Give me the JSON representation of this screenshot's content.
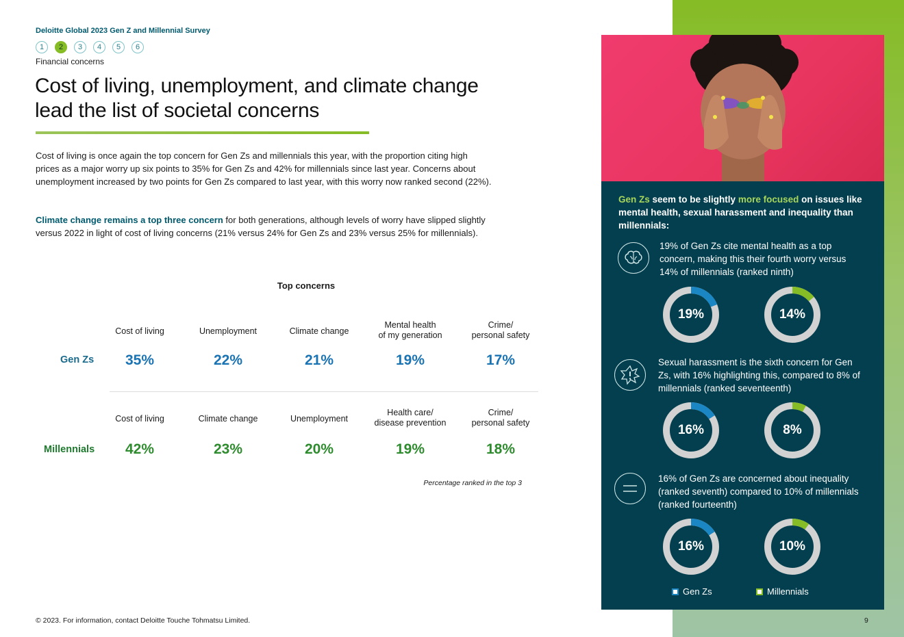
{
  "header": {
    "survey_title": "Deloitte Global 2023 Gen Z and Millennial Survey",
    "steps": [
      "1",
      "2",
      "3",
      "4",
      "5",
      "6"
    ],
    "active_step": "2",
    "section": "Financial concerns"
  },
  "headline": {
    "line1": "Cost of living, unemployment, and climate change",
    "line2": "lead the list of societal concerns"
  },
  "body": {
    "para1": "Cost of living is once again the top concern for Gen Zs and millennials this year, with the proportion citing high prices as a major worry up six points to 35% for Gen Zs and 42% for millennials since last year. Concerns about unemployment increased by two points for Gen Zs compared to last year, with this worry now ranked second (22%).",
    "para2_highlight": "Climate change remains a top three concern",
    "para2_rest": " for both generations, although levels of worry have slipped slightly versus 2022 in light of cost of living concerns (21% versus 24% for Gen Zs and 23% versus 25% for millennials)."
  },
  "table": {
    "title": "Top concerns",
    "gen_z": {
      "label": "Gen Zs",
      "cols": [
        {
          "head1": "Cost of living",
          "head2": "",
          "value": "35%"
        },
        {
          "head1": "Unemployment",
          "head2": "",
          "value": "22%"
        },
        {
          "head1": "Climate change",
          "head2": "",
          "value": "21%"
        },
        {
          "head1": "Mental health",
          "head2": "of my generation",
          "value": "19%"
        },
        {
          "head1": "Crime/",
          "head2": "personal safety",
          "value": "17%"
        }
      ]
    },
    "millennials": {
      "label": "Millennials",
      "cols": [
        {
          "head1": "Cost of living",
          "head2": "",
          "value": "42%"
        },
        {
          "head1": "Climate change",
          "head2": "",
          "value": "23%"
        },
        {
          "head1": "Unemployment",
          "head2": "",
          "value": "20%"
        },
        {
          "head1": "Health care/",
          "head2": "disease prevention",
          "value": "19%"
        },
        {
          "head1": "Crime/",
          "head2": "personal safety",
          "value": "18%"
        }
      ]
    },
    "footnote": "Percentage ranked in the top 3"
  },
  "panel": {
    "intro_a": "Gen Zs",
    "intro_b": " seem to be slightly ",
    "intro_c": "more focused",
    "intro_d": " on issues like mental health, sexual harassment and inequality than millennials:",
    "items": [
      {
        "icon": "brain-icon",
        "text": "19% of Gen Zs cite mental health as a top concern, making this their fourth worry versus 14% of millennials (ranked ninth)",
        "genz_label": "19%",
        "genz_value": 19,
        "mil_label": "14%",
        "mil_value": 14
      },
      {
        "icon": "alert-burst-icon",
        "text": "Sexual harassment is the sixth concern for Gen Zs, with 16% highlighting this, compared to 8% of millennials (ranked seventeenth)",
        "genz_label": "16%",
        "genz_value": 16,
        "mil_label": "8%",
        "mil_value": 8
      },
      {
        "icon": "not-equal-icon",
        "text": "16% of Gen Zs are concerned about inequality (ranked seventh) compared to 10% of millennials (ranked fourteenth)",
        "genz_label": "16%",
        "genz_value": 16,
        "mil_label": "10%",
        "mil_value": 10
      }
    ],
    "legend": {
      "genz": "Gen Zs",
      "millennials": "Millennials"
    }
  },
  "colors": {
    "genz": "#1a86c4",
    "millennials": "#86bc25",
    "track": "#d2d2d2",
    "panel": "#033f4f"
  },
  "footer": {
    "copyright": "© 2023. For information, contact Deloitte Touche Tohmatsu Limited.",
    "page_number": "9"
  }
}
